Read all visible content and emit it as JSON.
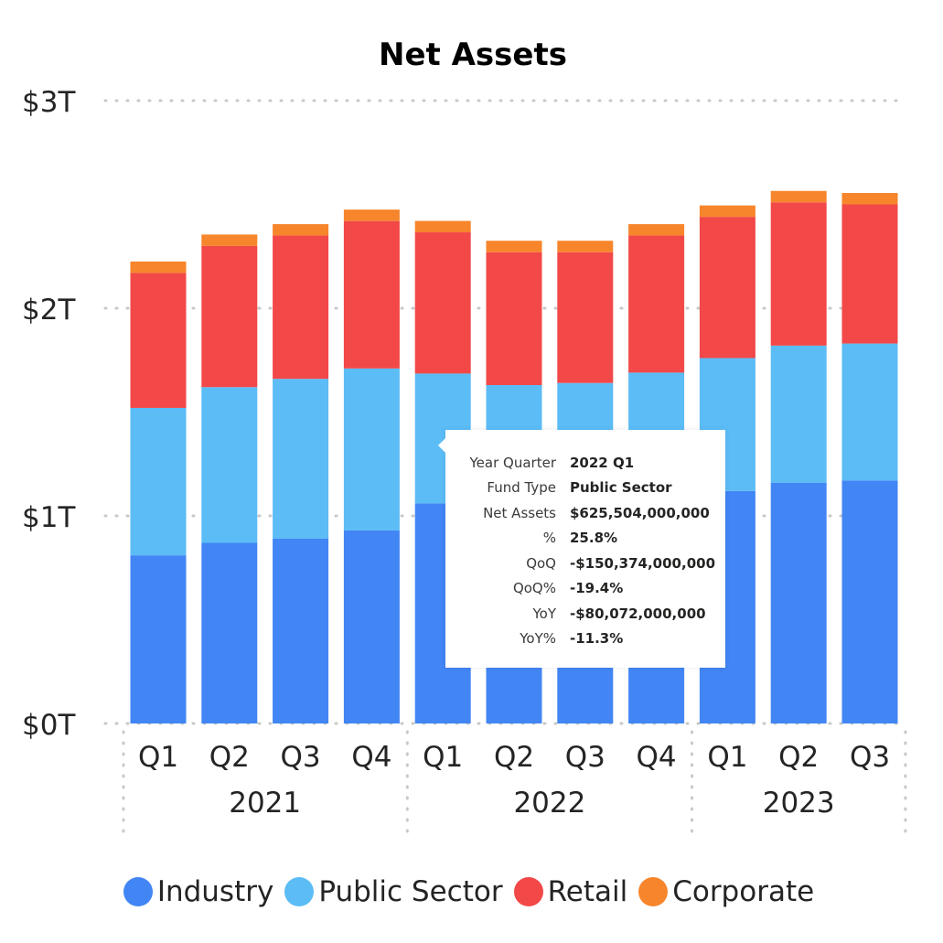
{
  "chart_data": {
    "type": "bar",
    "stacked": true,
    "title": "Net Assets",
    "xlabel": "",
    "ylabel": "",
    "ylim": [
      0,
      3000000000000
    ],
    "y_ticks": [
      0,
      1000000000000,
      2000000000000,
      3000000000000
    ],
    "y_tick_labels": [
      "$0T",
      "$1T",
      "$2T",
      "$3T"
    ],
    "grid": true,
    "legend_position": "bottom-center",
    "categories": [
      "2021 Q1",
      "2021 Q2",
      "2021 Q3",
      "2021 Q4",
      "2022 Q1",
      "2022 Q2",
      "2022 Q3",
      "2022 Q4",
      "2023 Q1",
      "2023 Q2",
      "2023 Q3"
    ],
    "quarter_labels": [
      "Q1",
      "Q2",
      "Q3",
      "Q4",
      "Q1",
      "Q2",
      "Q3",
      "Q4",
      "Q1",
      "Q2",
      "Q3"
    ],
    "year_groups": [
      {
        "label": "2021",
        "count": 4
      },
      {
        "label": "2022",
        "count": 4
      },
      {
        "label": "2023",
        "count": 3
      }
    ],
    "series": [
      {
        "name": "Industry",
        "color": "#4285F4",
        "values": [
          810000000000,
          870000000000,
          890000000000,
          930000000000,
          1060000000000,
          1040000000000,
          1050000000000,
          1070000000000,
          1120000000000,
          1160000000000,
          1170000000000
        ]
      },
      {
        "name": "Public Sector",
        "color": "#5BBCF6",
        "values": [
          710000000000,
          750000000000,
          770000000000,
          780000000000,
          625504000000,
          590000000000,
          590000000000,
          620000000000,
          640000000000,
          660000000000,
          660000000000
        ]
      },
      {
        "name": "Retail",
        "color": "#F24848",
        "values": [
          650000000000,
          680000000000,
          690000000000,
          710000000000,
          680000000000,
          640000000000,
          630000000000,
          660000000000,
          680000000000,
          690000000000,
          670000000000
        ]
      },
      {
        "name": "Corporate",
        "color": "#F7852B",
        "values": [
          55000000000,
          55000000000,
          55000000000,
          55000000000,
          55000000000,
          55000000000,
          55000000000,
          55000000000,
          55000000000,
          55000000000,
          55000000000
        ]
      }
    ]
  },
  "tooltip": {
    "rows": [
      {
        "label": "Year Quarter",
        "value": "2022 Q1"
      },
      {
        "label": "Fund Type",
        "value": "Public Sector"
      },
      {
        "label": "Net Assets",
        "value": "$625,504,000,000"
      },
      {
        "label": "%",
        "value": "25.8%"
      },
      {
        "label": "QoQ",
        "value": "-$150,374,000,000"
      },
      {
        "label": "QoQ%",
        "value": "-19.4%"
      },
      {
        "label": "YoY",
        "value": "-$80,072,000,000"
      },
      {
        "label": "YoY%",
        "value": "-11.3%"
      }
    ]
  }
}
